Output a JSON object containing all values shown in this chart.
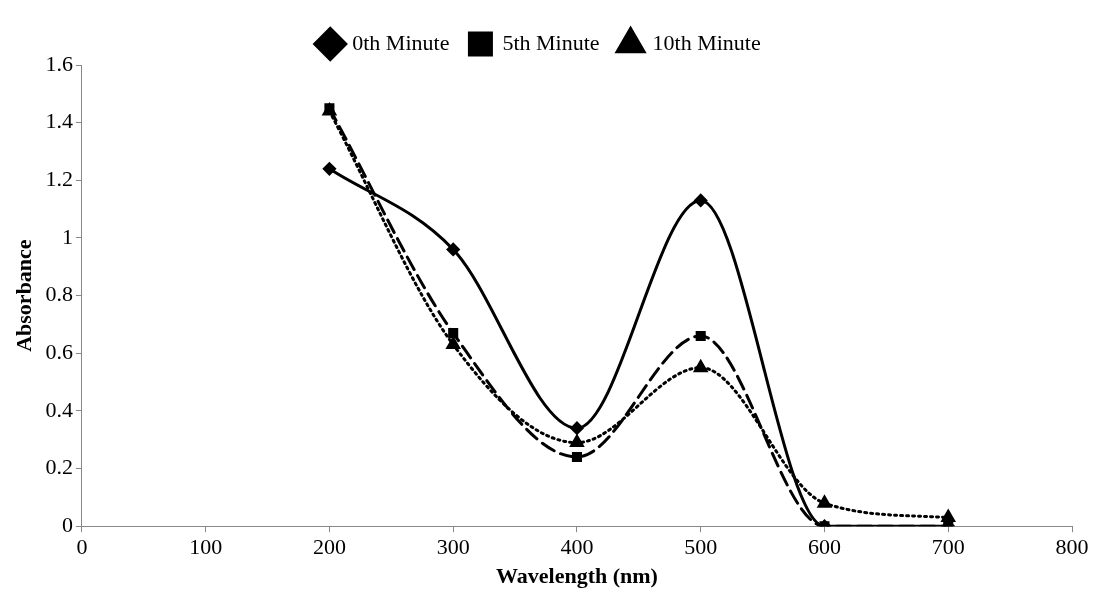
{
  "chart_data": {
    "type": "line",
    "xlabel": "Wavelength (nm)",
    "ylabel": "Absorbance",
    "x": [
      200,
      300,
      400,
      500,
      600,
      700
    ],
    "series": [
      {
        "name": "0th Minute",
        "color": "#000000",
        "values": [
          1.24,
          0.96,
          0.34,
          1.13,
          0,
          0
        ],
        "marker": "diamond",
        "line_style": "solid"
      },
      {
        "name": "5th Minute",
        "color": "#000000",
        "values": [
          1.45,
          0.67,
          0.24,
          0.66,
          0,
          0
        ],
        "marker": "square",
        "line_style": "dashed"
      },
      {
        "name": "10th Minute",
        "color": "#000000",
        "values": [
          1.44,
          0.63,
          0.29,
          0.55,
          0.08,
          0.03
        ],
        "marker": "triangle",
        "line_style": "dotted"
      }
    ],
    "xlim": [
      0,
      800
    ],
    "xticks": [
      0,
      100,
      200,
      300,
      400,
      500,
      600,
      700,
      800
    ],
    "ylim": [
      0,
      1.6
    ],
    "yticks": [
      0,
      0.2,
      0.4,
      0.6,
      0.8,
      1,
      1.2,
      1.4,
      1.6
    ],
    "grid": false,
    "legend": "top"
  }
}
